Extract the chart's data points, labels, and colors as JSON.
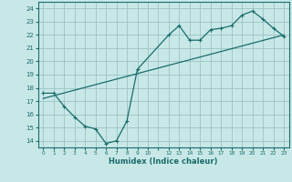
{
  "xlabel": "Humidex (Indice chaleur)",
  "ylabel": "",
  "bg_color": "#c8e8e8",
  "grid_color": "#a0c8c8",
  "line_color": "#1a6b6b",
  "xlim": [
    -0.5,
    23.5
  ],
  "ylim": [
    13.5,
    24.5
  ],
  "yticks": [
    14,
    15,
    16,
    17,
    18,
    19,
    20,
    21,
    22,
    23,
    24
  ],
  "xtick_vals": [
    0,
    1,
    2,
    3,
    4,
    5,
    6,
    7,
    8,
    9,
    10,
    11,
    12,
    13,
    14,
    15,
    16,
    17,
    18,
    19,
    20,
    21,
    22,
    23
  ],
  "xtick_labels": [
    "0",
    "1",
    "2",
    "3",
    "4",
    "5",
    "6",
    "7",
    "8",
    "9",
    "10",
    "",
    "12",
    "13",
    "14",
    "15",
    "16",
    "17",
    "18",
    "19",
    "20",
    "21",
    "22",
    "23"
  ],
  "line1_x": [
    0,
    1,
    2,
    3,
    4,
    5,
    6,
    7,
    8,
    9,
    12,
    13,
    14,
    15,
    16,
    17,
    18,
    19,
    20,
    21,
    22,
    23
  ],
  "line1_y": [
    17.6,
    17.6,
    16.6,
    15.8,
    15.1,
    14.9,
    13.8,
    14.0,
    15.5,
    19.4,
    22.0,
    22.7,
    21.6,
    21.6,
    22.4,
    22.5,
    22.7,
    23.5,
    23.8,
    23.2,
    22.5,
    21.9
  ],
  "line2_x": [
    0,
    23
  ],
  "line2_y": [
    17.2,
    22.0
  ]
}
